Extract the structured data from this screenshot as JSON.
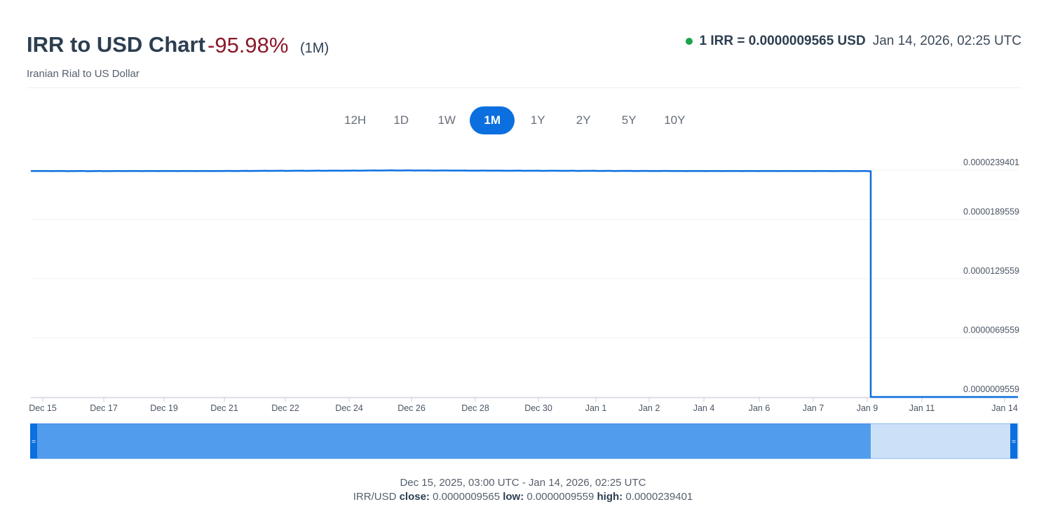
{
  "header": {
    "title": "IRR to USD Chart",
    "change": "-95.98%",
    "period": "(1M)",
    "subtitle": "Iranian Rial to US Dollar",
    "rate": "1 IRR = 0.0000009565 USD",
    "timestamp": "Jan 14, 2026, 02:25 UTC"
  },
  "ranges": [
    "12H",
    "1D",
    "1W",
    "1M",
    "1Y",
    "2Y",
    "5Y",
    "10Y"
  ],
  "active_range": "1M",
  "footer": {
    "date_range": "Dec 15, 2025, 03:00 UTC - Jan 14, 2026, 02:25 UTC",
    "pair": "IRR/USD",
    "close_label": "close:",
    "close": "0.0000009565",
    "low_label": "low:",
    "low": "0.0000009559",
    "high_label": "high:",
    "high": "0.0000239401"
  },
  "colors": {
    "line": "#0b6fdf",
    "accent": "#0b6fdf",
    "negative": "#8b1a2b",
    "live": "#1aa34a",
    "navigator_fill": "#529ced",
    "navigator_rest": "#cce1f8"
  },
  "chart_data": {
    "type": "line",
    "series": [
      {
        "values": [
          {
            "x": "2025-12-15",
            "y": 2.385e-05
          },
          {
            "x": "2025-12-17",
            "y": 2.384e-05
          },
          {
            "x": "2025-12-19",
            "y": 2.385e-05
          },
          {
            "x": "2025-12-21",
            "y": 2.385e-05
          },
          {
            "x": "2025-12-22",
            "y": 2.387e-05
          },
          {
            "x": "2025-12-24",
            "y": 2.388e-05
          },
          {
            "x": "2025-12-26",
            "y": 2.391e-05
          },
          {
            "x": "2025-12-28",
            "y": 2.39e-05
          },
          {
            "x": "2025-12-30",
            "y": 2.388e-05
          },
          {
            "x": "2026-01-01",
            "y": 2.387e-05
          },
          {
            "x": "2026-01-02",
            "y": 2.386e-05
          },
          {
            "x": "2026-01-04",
            "y": 2.385e-05
          },
          {
            "x": "2026-01-06",
            "y": 2.385e-05
          },
          {
            "x": "2026-01-07",
            "y": 2.385e-05
          },
          {
            "x": "2026-01-09",
            "y": 2.384e-05
          },
          {
            "x": "2026-01-09",
            "y": 9.565e-07
          },
          {
            "x": "2026-01-11",
            "y": 9.56e-07
          },
          {
            "x": "2026-01-14",
            "y": 9.565e-07
          }
        ]
      }
    ],
    "x_ticks": [
      "Dec 15",
      "Dec 17",
      "Dec 19",
      "Dec 21",
      "Dec 22",
      "Dec 24",
      "Dec 26",
      "Dec 28",
      "Dec 30",
      "Jan 1",
      "Jan 2",
      "Jan 4",
      "Jan 6",
      "Jan 7",
      "Jan 9",
      "Jan 11",
      "Jan 14"
    ],
    "y_ticks": [
      "0.0000239401",
      "0.0000189559",
      "0.0000129559",
      "0.0000069559",
      "0.0000009559"
    ],
    "y_tick_values": [
      2.39401e-05,
      1.89559e-05,
      1.29559e-05,
      6.9559e-06,
      9.559e-07
    ],
    "ylim": [
      9.559e-07,
      2.39401e-05
    ],
    "grid": true,
    "y_axis_side": "right"
  }
}
